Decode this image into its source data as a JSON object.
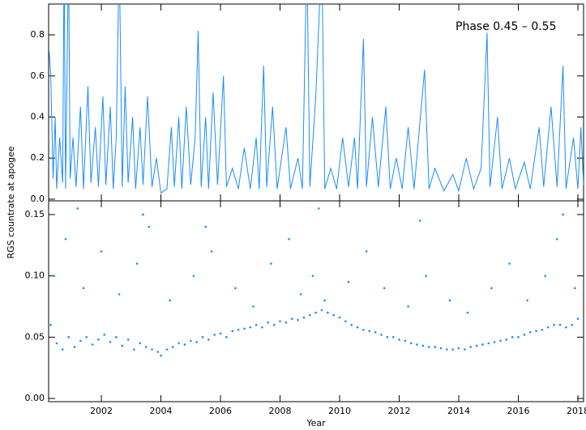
{
  "chart_data": [
    {
      "type": "line",
      "annotation": "Phase 0.45 – 0.55",
      "ylabel": "RGS countrate at apogee",
      "color": "#1a8cff",
      "ylim": [
        -0.008,
        0.95
      ],
      "yticks": [
        {
          "value": 0,
          "label": "0.0"
        },
        0.2,
        0.4,
        0.6,
        0.8
      ],
      "x": [
        2000.25,
        2000.3,
        2000.38,
        2000.45,
        2000.5,
        2000.6,
        2000.7,
        2000.75,
        2000.8,
        2000.9,
        2000.95,
        2001.05,
        2001.15,
        2001.3,
        2001.4,
        2001.55,
        2001.65,
        2001.8,
        2001.9,
        2002.05,
        2002.15,
        2002.3,
        2002.4,
        2002.5,
        2002.6,
        2002.7,
        2002.8,
        2002.9,
        2003.05,
        2003.15,
        2003.3,
        2003.4,
        2003.55,
        2003.7,
        2003.85,
        2004.0,
        2004.2,
        2004.35,
        2004.45,
        2004.6,
        2004.7,
        2004.85,
        2005.0,
        2005.15,
        2005.25,
        2005.35,
        2005.5,
        2005.6,
        2005.75,
        2005.9,
        2006.1,
        2006.2,
        2006.4,
        2006.6,
        2006.8,
        2007.0,
        2007.2,
        2007.3,
        2007.45,
        2007.55,
        2007.75,
        2007.9,
        2008.2,
        2008.35,
        2008.6,
        2008.75,
        2008.9,
        2009.0,
        2009.2,
        2009.4,
        2009.5,
        2009.7,
        2009.9,
        2010.1,
        2010.3,
        2010.5,
        2010.6,
        2010.8,
        2010.9,
        2011.1,
        2011.3,
        2011.55,
        2011.7,
        2011.9,
        2012.1,
        2012.3,
        2012.5,
        2012.85,
        2013.0,
        2013.2,
        2013.5,
        2013.8,
        2014.0,
        2014.25,
        2014.5,
        2014.75,
        2014.95,
        2015.05,
        2015.3,
        2015.45,
        2015.7,
        2015.9,
        2016.2,
        2016.4,
        2016.7,
        2016.85,
        2017.1,
        2017.3,
        2017.5,
        2017.6,
        2017.85,
        2018.0,
        2018.1,
        2018.19
      ],
      "values": [
        0.72,
        0.6,
        0.1,
        0.4,
        0.05,
        0.3,
        0.08,
        1.2,
        0.05,
        1.2,
        0.1,
        0.3,
        0.06,
        0.45,
        0.05,
        0.55,
        0.08,
        0.35,
        0.06,
        0.5,
        0.07,
        0.45,
        0.05,
        0.3,
        1.2,
        0.06,
        0.55,
        0.08,
        0.4,
        0.05,
        0.35,
        0.07,
        0.5,
        0.06,
        0.2,
        0.03,
        0.05,
        0.35,
        0.06,
        0.4,
        0.05,
        0.45,
        0.07,
        0.3,
        0.82,
        0.06,
        0.4,
        0.05,
        0.52,
        0.07,
        0.6,
        0.06,
        0.15,
        0.05,
        0.25,
        0.05,
        0.3,
        0.05,
        0.65,
        0.06,
        0.45,
        0.05,
        0.35,
        0.05,
        0.2,
        0.05,
        1.2,
        0.06,
        0.5,
        1.2,
        0.05,
        0.15,
        0.05,
        0.3,
        0.06,
        0.3,
        0.05,
        0.78,
        0.06,
        0.4,
        0.06,
        0.45,
        0.05,
        0.2,
        0.05,
        0.35,
        0.05,
        0.63,
        0.05,
        0.15,
        0.04,
        0.12,
        0.04,
        0.2,
        0.05,
        0.15,
        0.81,
        0.06,
        0.4,
        0.05,
        0.2,
        0.05,
        0.18,
        0.05,
        0.35,
        0.06,
        0.45,
        0.06,
        0.65,
        0.05,
        0.3,
        0.05,
        0.35,
        0.07
      ]
    },
    {
      "type": "scatter",
      "xlabel": "Year",
      "color": "#1a8cff",
      "xlim": [
        2000.23,
        2018.19
      ],
      "xticks": [
        2002,
        2004,
        2006,
        2008,
        2010,
        2012,
        2014,
        2016,
        2018
      ],
      "ylim": [
        -0.0026,
        0.1612
      ],
      "yticks": [
        {
          "value": 0,
          "label": "0.00"
        },
        0.05,
        {
          "value": 0.1,
          "label": "0.10"
        },
        0.15
      ],
      "x": [
        2000.3,
        2000.5,
        2000.7,
        2000.9,
        2001.1,
        2001.3,
        2001.5,
        2001.7,
        2001.9,
        2002.1,
        2002.3,
        2002.5,
        2002.7,
        2002.9,
        2003.1,
        2003.3,
        2003.5,
        2003.7,
        2003.9,
        2004.0,
        2004.2,
        2004.4,
        2004.6,
        2004.8,
        2005.0,
        2005.2,
        2005.4,
        2005.6,
        2005.8,
        2006.0,
        2006.2,
        2006.4,
        2006.6,
        2006.8,
        2007.0,
        2007.2,
        2007.4,
        2007.6,
        2007.8,
        2008.0,
        2008.2,
        2008.4,
        2008.6,
        2008.8,
        2009.0,
        2009.2,
        2009.4,
        2009.6,
        2009.8,
        2010.0,
        2010.2,
        2010.4,
        2010.6,
        2010.8,
        2011.0,
        2011.2,
        2011.4,
        2011.6,
        2011.8,
        2012.0,
        2012.2,
        2012.4,
        2012.6,
        2012.8,
        2013.0,
        2013.2,
        2013.4,
        2013.6,
        2013.8,
        2014.0,
        2014.2,
        2014.4,
        2014.6,
        2014.8,
        2015.0,
        2015.2,
        2015.4,
        2015.6,
        2015.8,
        2016.0,
        2016.2,
        2016.4,
        2016.6,
        2016.8,
        2017.0,
        2017.2,
        2017.4,
        2017.6,
        2017.8,
        2018.0,
        2000.4,
        2000.8,
        2001.4,
        2002.0,
        2002.6,
        2003.2,
        2003.6,
        2004.3,
        2005.1,
        2005.7,
        2006.5,
        2007.1,
        2007.7,
        2008.3,
        2008.7,
        2009.1,
        2009.5,
        2010.3,
        2010.9,
        2011.5,
        2012.3,
        2012.9,
        2013.7,
        2014.3,
        2015.1,
        2015.7,
        2016.3,
        2016.9,
        2017.3,
        2017.9,
        2001.2,
        2003.4,
        2005.5,
        2009.3,
        2012.7,
        2017.5
      ],
      "values": [
        0.06,
        0.045,
        0.04,
        0.05,
        0.042,
        0.047,
        0.05,
        0.044,
        0.048,
        0.052,
        0.046,
        0.05,
        0.043,
        0.048,
        0.04,
        0.045,
        0.042,
        0.04,
        0.038,
        0.035,
        0.04,
        0.042,
        0.045,
        0.044,
        0.047,
        0.046,
        0.05,
        0.048,
        0.052,
        0.053,
        0.05,
        0.055,
        0.056,
        0.057,
        0.058,
        0.06,
        0.058,
        0.062,
        0.06,
        0.063,
        0.062,
        0.065,
        0.064,
        0.066,
        0.068,
        0.07,
        0.072,
        0.07,
        0.068,
        0.066,
        0.063,
        0.06,
        0.058,
        0.056,
        0.055,
        0.054,
        0.052,
        0.05,
        0.05,
        0.048,
        0.047,
        0.045,
        0.044,
        0.043,
        0.042,
        0.042,
        0.041,
        0.04,
        0.04,
        0.041,
        0.04,
        0.042,
        0.043,
        0.044,
        0.045,
        0.046,
        0.047,
        0.048,
        0.05,
        0.05,
        0.052,
        0.054,
        0.055,
        0.056,
        0.058,
        0.06,
        0.06,
        0.058,
        0.06,
        0.065,
        0.1,
        0.13,
        0.09,
        0.12,
        0.085,
        0.11,
        0.14,
        0.08,
        0.1,
        0.12,
        0.09,
        0.075,
        0.11,
        0.13,
        0.085,
        0.1,
        0.08,
        0.095,
        0.12,
        0.09,
        0.075,
        0.1,
        0.08,
        0.07,
        0.09,
        0.11,
        0.08,
        0.1,
        0.13,
        0.09,
        0.155,
        0.15,
        0.14,
        0.155,
        0.145,
        0.15
      ]
    }
  ]
}
